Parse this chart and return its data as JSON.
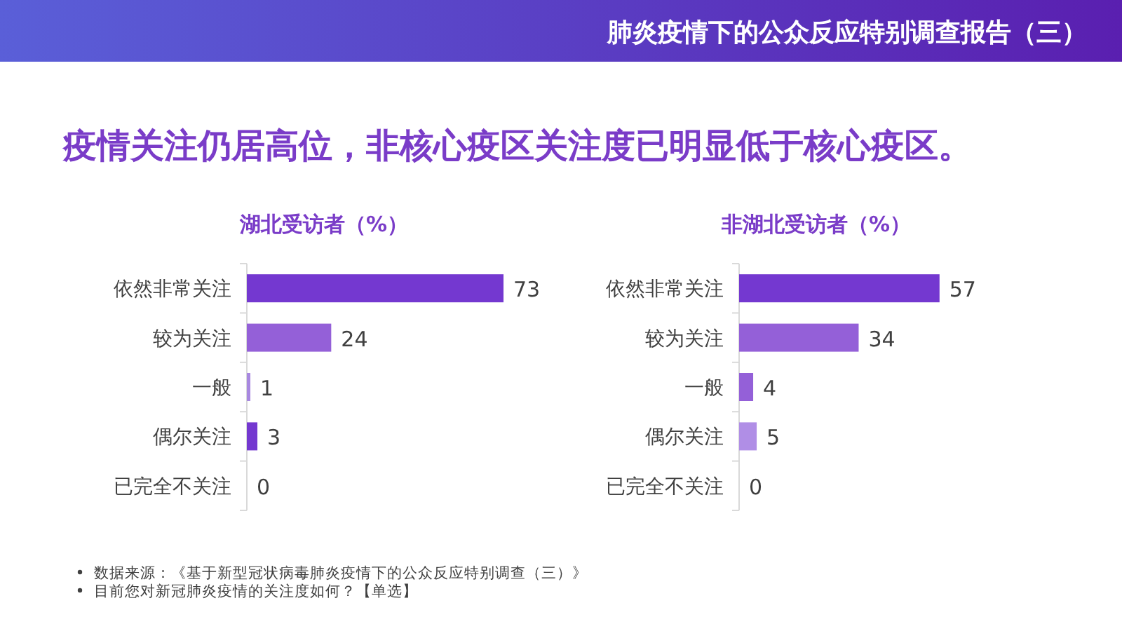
{
  "chart_data": [
    {
      "type": "bar",
      "orientation": "horizontal",
      "title": "湖北受访者（%）",
      "categories": [
        "依然非常关注",
        "较为关注",
        "一般",
        "偶尔关注",
        "已完全不关注"
      ],
      "values": [
        73,
        24,
        1,
        3,
        0
      ],
      "colors": [
        "#7438d0",
        "#9460d8",
        "#a888e0",
        "#7438d0",
        "#7438d0"
      ],
      "data_labels": true,
      "annotations": [
        "肺炎疫情下的公众反应特别调查报告（三）",
        "疫情关注仍居高位，非核心疫区关注度已明显低于核心疫区。",
        "数据来源：《基于新型冠状病毒肺炎疫情下的公众反应特别调查（三）》",
        "目前您对新冠肺炎疫情的关注度如何？【单选】"
      ]
    },
    {
      "type": "bar",
      "orientation": "horizontal",
      "title": "非湖北受访者（%）",
      "categories": [
        "依然非常关注",
        "较为关注",
        "一般",
        "偶尔关注",
        "已完全不关注"
      ],
      "values": [
        57,
        34,
        4,
        5,
        0
      ],
      "colors": [
        "#7438d0",
        "#9460d8",
        "#9460d8",
        "#b08ee6",
        "#7438d0"
      ],
      "data_labels": true
    }
  ]
}
